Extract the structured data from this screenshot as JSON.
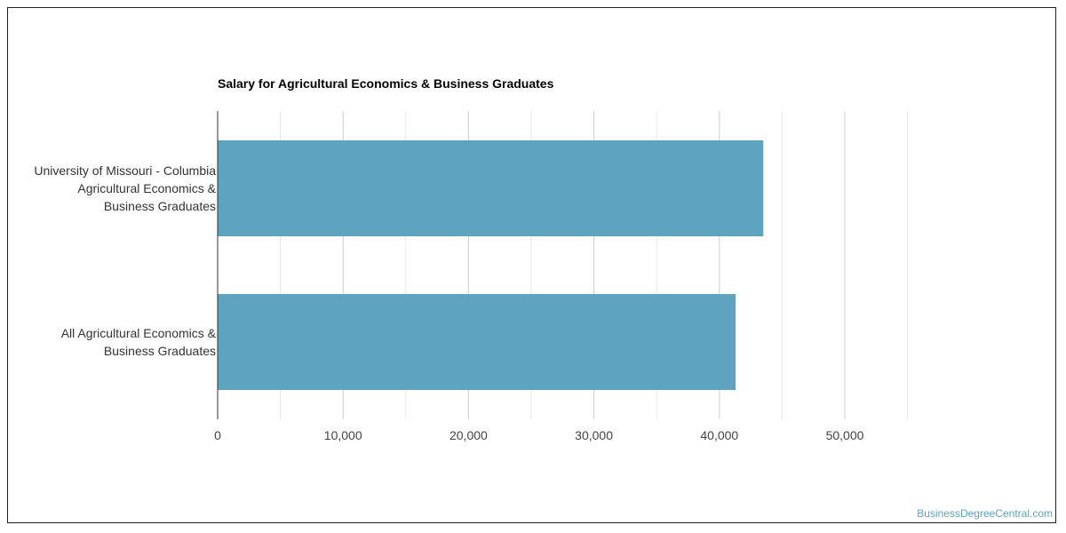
{
  "chart_data": {
    "type": "bar",
    "orientation": "horizontal",
    "title": "Salary for Agricultural Economics & Business Graduates",
    "xlabel": "",
    "ylabel": "",
    "categories": [
      [
        "University of Missouri - Columbia",
        "Agricultural Economics &",
        "Business Graduates"
      ],
      [
        "All Agricultural Economics &",
        "Business Graduates"
      ]
    ],
    "values": [
      43500,
      41300
    ],
    "xlim": [
      0,
      50000
    ],
    "ticks": [
      0,
      10000,
      20000,
      30000,
      40000,
      50000
    ],
    "tick_labels": [
      "0",
      "10,000",
      "20,000",
      "30,000",
      "40,000",
      "50,000"
    ],
    "grid": true,
    "bar_color": "#5ea3bf"
  },
  "watermark": "BusinessDegreeCentral.com"
}
